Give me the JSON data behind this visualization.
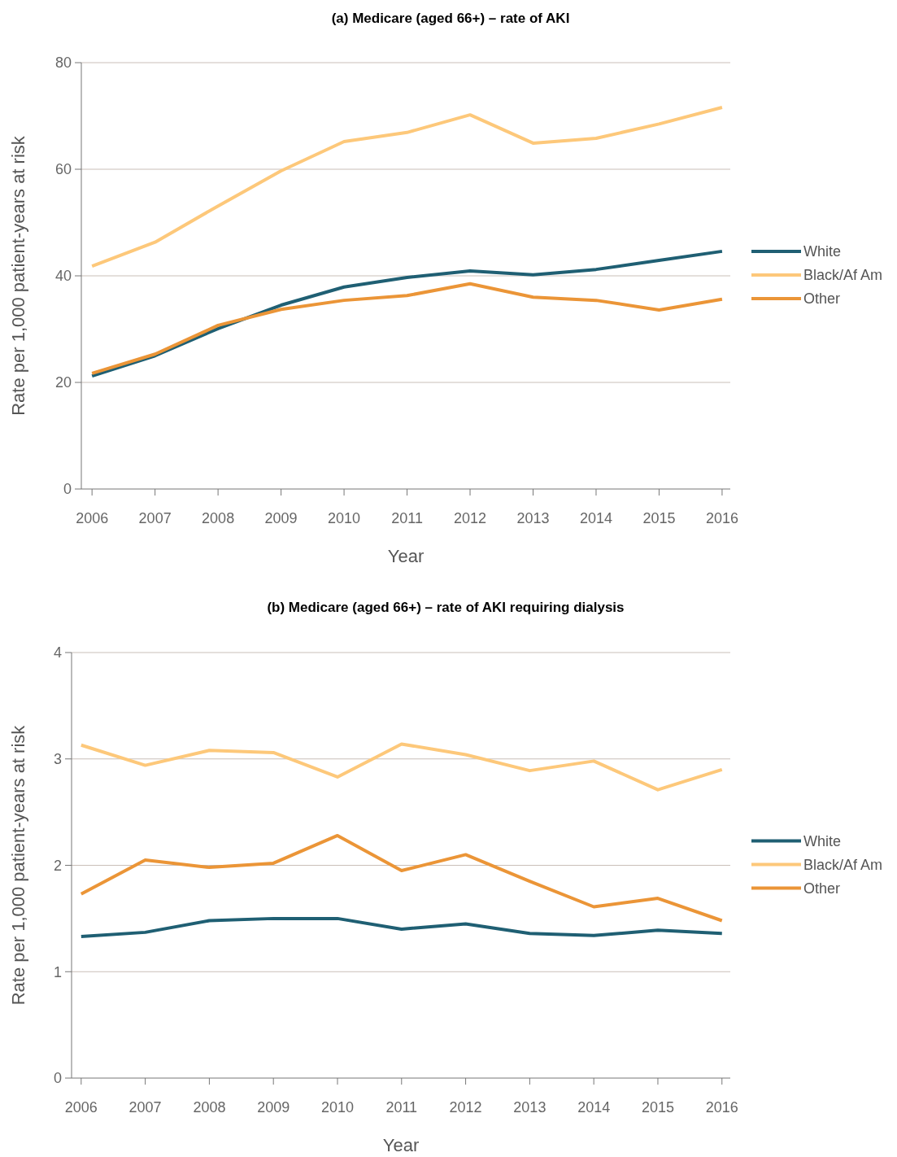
{
  "chart_data": [
    {
      "type": "line",
      "title": "(a) Medicare (aged 66+) – rate of AKI",
      "xlabel": "Year",
      "ylabel": "Rate per 1,000 patient-years at risk",
      "x": [
        2006,
        2007,
        2008,
        2009,
        2010,
        2011,
        2012,
        2013,
        2014,
        2015,
        2016
      ],
      "xlim": [
        2005.83,
        2016.13
      ],
      "xticks": [
        2006,
        2007,
        2008,
        2009,
        2010,
        2011,
        2012,
        2013,
        2014,
        2015,
        2016
      ],
      "ylim": [
        0,
        80
      ],
      "yticks": [
        0,
        20,
        40,
        60,
        80
      ],
      "grid": "y",
      "legend": "right",
      "marker": "none",
      "line_style": "solid",
      "series": [
        {
          "name": "White",
          "color": "#1f5f73",
          "values": [
            21.2,
            25.0,
            30.1,
            34.5,
            37.9,
            39.7,
            40.9,
            40.2,
            41.2,
            42.9,
            44.6
          ]
        },
        {
          "name": "Black/Af Am",
          "color": "#fdc87a",
          "values": [
            41.8,
            46.3,
            53.1,
            59.7,
            65.2,
            66.9,
            70.2,
            64.9,
            65.8,
            68.5,
            71.6
          ]
        },
        {
          "name": "Other",
          "color": "#eb9537",
          "values": [
            21.7,
            25.3,
            30.7,
            33.7,
            35.4,
            36.3,
            38.5,
            36.0,
            35.4,
            33.6,
            35.6
          ]
        }
      ]
    },
    {
      "type": "line",
      "title": "(b) Medicare (aged 66+) – rate of AKI requiring dialysis",
      "xlabel": "Year",
      "ylabel": "Rate per 1,000 patient-years at risk",
      "x": [
        2006,
        2007,
        2008,
        2009,
        2010,
        2011,
        2012,
        2013,
        2014,
        2015,
        2016
      ],
      "xlim": [
        2005.85,
        2016.13
      ],
      "xticks": [
        2006,
        2007,
        2008,
        2009,
        2010,
        2011,
        2012,
        2013,
        2014,
        2015,
        2016
      ],
      "ylim": [
        0,
        4
      ],
      "yticks": [
        0,
        1,
        2,
        3,
        4
      ],
      "grid": "y",
      "legend": "right",
      "marker": "none",
      "line_style": "solid",
      "series": [
        {
          "name": "White",
          "color": "#1f5f73",
          "values": [
            1.33,
            1.37,
            1.48,
            1.5,
            1.5,
            1.4,
            1.45,
            1.36,
            1.34,
            1.39,
            1.36
          ]
        },
        {
          "name": "Black/Af Am",
          "color": "#fdc87a",
          "values": [
            3.13,
            2.94,
            3.08,
            3.06,
            2.83,
            3.14,
            3.04,
            2.89,
            2.98,
            2.71,
            2.9
          ]
        },
        {
          "name": "Other",
          "color": "#eb9537",
          "values": [
            1.73,
            2.05,
            1.98,
            2.02,
            2.28,
            1.95,
            2.1,
            1.85,
            1.61,
            1.69,
            1.48
          ]
        }
      ]
    }
  ]
}
